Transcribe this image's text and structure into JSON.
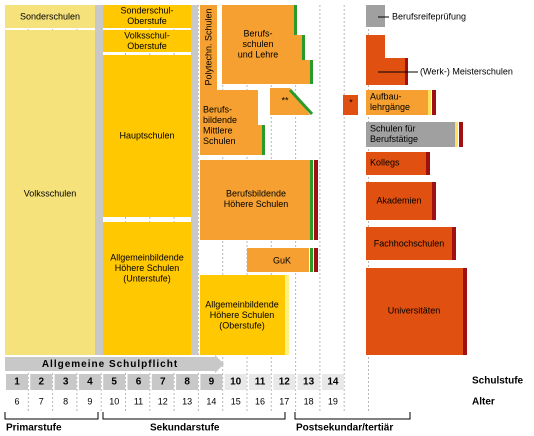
{
  "schools": [
    {
      "lines": [
        "Sonderschulen"
      ]
    },
    {
      "lines": [
        "Volksschulen"
      ]
    },
    {
      "lines": [
        "Sonderschul-",
        "Oberstufe"
      ]
    },
    {
      "lines": [
        "Volksschul-",
        "Oberstufe"
      ]
    },
    {
      "lines": [
        "Hauptschulen"
      ]
    },
    {
      "lines": [
        "Allgemeinbildende",
        "Höhere Schulen",
        "(Unterstufe)"
      ]
    },
    {
      "lines": [
        "Polytechn. Schulen"
      ]
    },
    {
      "lines": [
        "Berufs-",
        "schulen",
        "und Lehre"
      ]
    },
    {
      "lines": [
        "Berufs-",
        "bildende",
        "Mittlere",
        "Schulen"
      ]
    },
    {
      "lines": [
        "**"
      ]
    },
    {
      "lines": [
        "Berufsbildende",
        "Höhere Schulen"
      ]
    },
    {
      "lines": [
        "GuK"
      ]
    },
    {
      "lines": [
        "Allgemeinbildende",
        "Höhere Schulen",
        "(Oberstufe)"
      ]
    },
    {
      "lines": [
        "Berufsreifeprüfung"
      ]
    },
    {
      "lines": [
        "(Werk-) Meisterschulen"
      ]
    },
    {
      "lines": [
        "*"
      ]
    },
    {
      "lines": [
        "Aufbau-",
        "lehrgänge"
      ]
    },
    {
      "lines": [
        "Schulen für",
        "Berufstätige"
      ]
    },
    {
      "lines": [
        "Kollegs"
      ]
    },
    {
      "lines": [
        "Akademien"
      ]
    },
    {
      "lines": [
        "Fachhochschulen"
      ]
    },
    {
      "lines": [
        "Universitäten"
      ]
    }
  ],
  "compulsory": "Allgemeine Schulpflicht",
  "grades": {
    "label": "Schulstufe",
    "values": [
      "1",
      "2",
      "3",
      "4",
      "5",
      "6",
      "7",
      "8",
      "9",
      "10",
      "11",
      "12",
      "13",
      "14"
    ]
  },
  "ages": {
    "label": "Alter",
    "values": [
      "6",
      "7",
      "8",
      "9",
      "10",
      "11",
      "12",
      "13",
      "14",
      "15",
      "16",
      "17",
      "18",
      "19"
    ]
  },
  "levels": [
    "Primarstufe",
    "Sekundarstufe",
    "Postsekundar/tertiär"
  ]
}
